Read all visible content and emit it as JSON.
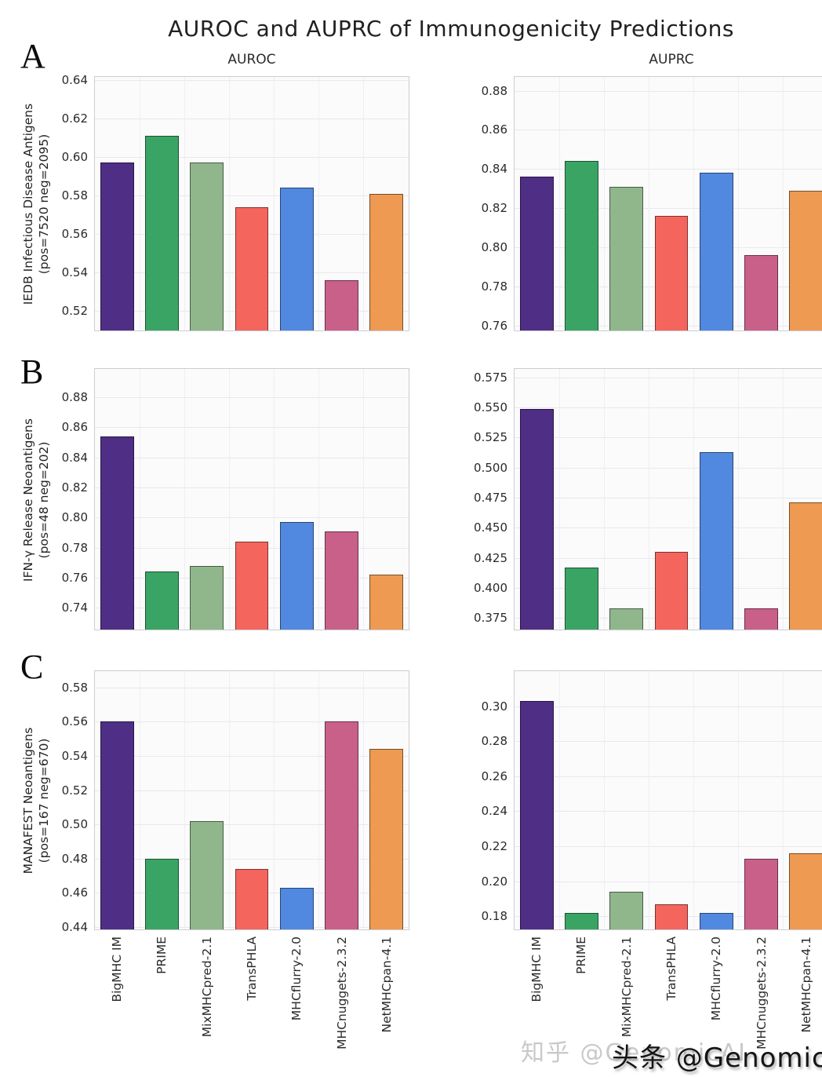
{
  "title": "AUROC and AUPRC of Immunogenicity Predictions",
  "columns": [
    "AUROC",
    "AUPRC"
  ],
  "panels": [
    {
      "letter": "A",
      "label_line1": "IEDB Infectious Disease Antigens",
      "label_line2": "(pos=7520 neg=2095)"
    },
    {
      "letter": "B",
      "label_line1": "IFN-γ Release Neoantigens",
      "label_line2": "(pos=48 neg=202)"
    },
    {
      "letter": "C",
      "label_line1": "MANAFEST Neoantigens",
      "label_line2": "(pos=167 neg=670)"
    }
  ],
  "models": [
    "BigMHC IM",
    "PRIME",
    "MixMHCpred-2.1",
    "TransPHLA",
    "MHCflurry-2.0",
    "MHCnuggets-2.3.2",
    "NetMHCpan-4.1"
  ],
  "palette": [
    "#4f2e86",
    "#3aa464",
    "#90b78c",
    "#f4655e",
    "#5189e0",
    "#c9608a",
    "#ee9a52"
  ],
  "watermarks": {
    "light": "知乎 @GenomicAI",
    "dark": "头条 @GenomicAI"
  },
  "chart_data": [
    {
      "type": "bar",
      "panel": "A",
      "metric": "AUROC",
      "row_label": "IEDB Infectious Disease Antigens (pos=7520 neg=2095)",
      "categories": [
        "BigMHC IM",
        "PRIME",
        "MixMHCpred-2.1",
        "TransPHLA",
        "MHCflurry-2.0",
        "MHCnuggets-2.3.2",
        "NetMHCpan-4.1"
      ],
      "values": [
        0.597,
        0.611,
        0.597,
        0.574,
        0.584,
        0.536,
        0.581
      ],
      "ylim": [
        0.51,
        0.6415
      ],
      "grid": true,
      "legend": false,
      "yticks": [
        {
          "value": 0.64,
          "label": "0.64"
        },
        {
          "value": 0.62,
          "label": "0.62"
        },
        {
          "value": 0.6,
          "label": "0.60"
        },
        {
          "value": 0.58,
          "label": "0.58"
        },
        {
          "value": 0.56,
          "label": "0.56"
        },
        {
          "value": 0.54,
          "label": "0.54"
        },
        {
          "value": 0.52,
          "label": "0.52"
        }
      ]
    },
    {
      "type": "bar",
      "panel": "A",
      "metric": "AUPRC",
      "row_label": "IEDB Infectious Disease Antigens (pos=7520 neg=2095)",
      "categories": [
        "BigMHC IM",
        "PRIME",
        "MixMHCpred-2.1",
        "TransPHLA",
        "MHCflurry-2.0",
        "MHCnuggets-2.3.2",
        "NetMHCpan-4.1"
      ],
      "values": [
        0.836,
        0.844,
        0.831,
        0.816,
        0.838,
        0.796,
        0.829
      ],
      "ylim": [
        0.7576,
        0.887
      ],
      "grid": true,
      "legend": false,
      "yticks": [
        {
          "value": 0.88,
          "label": "0.88"
        },
        {
          "value": 0.86,
          "label": "0.86"
        },
        {
          "value": 0.84,
          "label": "0.84"
        },
        {
          "value": 0.82,
          "label": "0.82"
        },
        {
          "value": 0.8,
          "label": "0.80"
        },
        {
          "value": 0.78,
          "label": "0.78"
        },
        {
          "value": 0.76,
          "label": "0.76"
        }
      ]
    },
    {
      "type": "bar",
      "panel": "B",
      "metric": "AUROC",
      "row_label": "IFN-γ Release Neoantigens (pos=48 neg=202)",
      "categories": [
        "BigMHC IM",
        "PRIME",
        "MixMHCpred-2.1",
        "TransPHLA",
        "MHCflurry-2.0",
        "MHCnuggets-2.3.2",
        "NetMHCpan-4.1"
      ],
      "values": [
        0.854,
        0.764,
        0.768,
        0.784,
        0.797,
        0.791,
        0.762
      ],
      "ylim": [
        0.7256,
        0.8986
      ],
      "grid": true,
      "legend": false,
      "yticks": [
        {
          "value": 0.88,
          "label": "0.88"
        },
        {
          "value": 0.86,
          "label": "0.86"
        },
        {
          "value": 0.84,
          "label": "0.84"
        },
        {
          "value": 0.82,
          "label": "0.82"
        },
        {
          "value": 0.8,
          "label": "0.80"
        },
        {
          "value": 0.78,
          "label": "0.78"
        },
        {
          "value": 0.76,
          "label": "0.76"
        },
        {
          "value": 0.74,
          "label": "0.74"
        }
      ]
    },
    {
      "type": "bar",
      "panel": "B",
      "metric": "AUPRC",
      "row_label": "IFN-γ Release Neoantigens (pos=48 neg=202)",
      "categories": [
        "BigMHC IM",
        "PRIME",
        "MixMHCpred-2.1",
        "TransPHLA",
        "MHCflurry-2.0",
        "MHCnuggets-2.3.2",
        "NetMHCpan-4.1"
      ],
      "values": [
        0.549,
        0.417,
        0.383,
        0.43,
        0.513,
        0.383,
        0.471
      ],
      "ylim": [
        0.3654,
        0.582
      ],
      "grid": true,
      "legend": false,
      "yticks": [
        {
          "value": 0.575,
          "label": "0.575"
        },
        {
          "value": 0.55,
          "label": "0.550"
        },
        {
          "value": 0.525,
          "label": "0.525"
        },
        {
          "value": 0.5,
          "label": "0.500"
        },
        {
          "value": 0.475,
          "label": "0.475"
        },
        {
          "value": 0.45,
          "label": "0.450"
        },
        {
          "value": 0.425,
          "label": "0.425"
        },
        {
          "value": 0.4,
          "label": "0.400"
        },
        {
          "value": 0.375,
          "label": "0.375"
        }
      ]
    },
    {
      "type": "bar",
      "panel": "C",
      "metric": "AUROC",
      "row_label": "MANAFEST Neoantigens (pos=167 neg=670)",
      "categories": [
        "BigMHC IM",
        "PRIME",
        "MixMHCpred-2.1",
        "TransPHLA",
        "MHCflurry-2.0",
        "MHCnuggets-2.3.2",
        "NetMHCpan-4.1"
      ],
      "values": [
        0.56,
        0.48,
        0.502,
        0.474,
        0.463,
        0.56,
        0.544
      ],
      "ylim": [
        0.4386,
        0.5895
      ],
      "grid": true,
      "legend": false,
      "yticks": [
        {
          "value": 0.58,
          "label": "0.58"
        },
        {
          "value": 0.56,
          "label": "0.56"
        },
        {
          "value": 0.54,
          "label": "0.54"
        },
        {
          "value": 0.52,
          "label": "0.52"
        },
        {
          "value": 0.5,
          "label": "0.50"
        },
        {
          "value": 0.48,
          "label": "0.48"
        },
        {
          "value": 0.46,
          "label": "0.46"
        },
        {
          "value": 0.44,
          "label": "0.44"
        }
      ]
    },
    {
      "type": "bar",
      "panel": "C",
      "metric": "AUPRC",
      "row_label": "MANAFEST Neoantigens (pos=167 neg=670)",
      "categories": [
        "BigMHC IM",
        "PRIME",
        "MixMHCpred-2.1",
        "TransPHLA",
        "MHCflurry-2.0",
        "MHCnuggets-2.3.2",
        "NetMHCpan-4.1"
      ],
      "values": [
        0.303,
        0.182,
        0.194,
        0.187,
        0.182,
        0.213,
        0.216
      ],
      "ylim": [
        0.1725,
        0.32
      ],
      "grid": true,
      "legend": false,
      "yticks": [
        {
          "value": 0.3,
          "label": "0.30"
        },
        {
          "value": 0.28,
          "label": "0.28"
        },
        {
          "value": 0.26,
          "label": "0.26"
        },
        {
          "value": 0.24,
          "label": "0.24"
        },
        {
          "value": 0.22,
          "label": "0.22"
        },
        {
          "value": 0.2,
          "label": "0.20"
        },
        {
          "value": 0.18,
          "label": "0.18"
        }
      ]
    }
  ]
}
